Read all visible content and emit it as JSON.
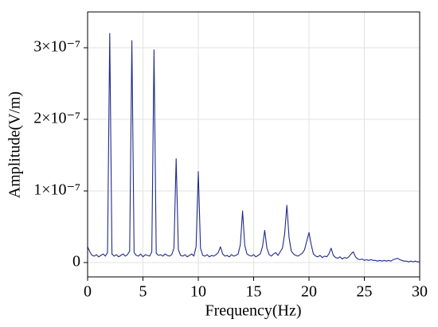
{
  "chart_data": {
    "type": "line",
    "xlabel": "Frequency(Hz)",
    "ylabel": "Amplitude(V/m)",
    "color": "#1f2a8a",
    "xlim": [
      0,
      30
    ],
    "xticks": [
      0,
      5,
      10,
      15,
      20,
      25,
      30
    ],
    "ylim": [
      -2e-08,
      3.5e-07
    ],
    "yticks": [
      0,
      {
        "value": 1e-07,
        "label": "1×10⁻⁷"
      },
      {
        "value": 2e-07,
        "label": "2×10⁻⁷"
      },
      {
        "value": 3e-07,
        "label": "3×10⁻⁷"
      }
    ],
    "grid": true,
    "x": [
      0,
      0.2,
      0.4,
      0.6,
      0.8,
      1,
      1.2,
      1.4,
      1.6,
      1.8,
      2,
      2.2,
      2.4,
      2.6,
      2.8,
      3,
      3.2,
      3.4,
      3.6,
      3.8,
      4,
      4.2,
      4.4,
      4.6,
      4.8,
      5,
      5.2,
      5.4,
      5.6,
      5.8,
      6,
      6.2,
      6.4,
      6.6,
      6.8,
      7,
      7.2,
      7.4,
      7.6,
      7.8,
      8,
      8.2,
      8.4,
      8.6,
      8.8,
      9,
      9.2,
      9.4,
      9.6,
      9.8,
      10,
      10.2,
      10.4,
      10.6,
      10.8,
      11,
      11.2,
      11.4,
      11.6,
      11.8,
      12,
      12.2,
      12.4,
      12.6,
      12.8,
      13,
      13.2,
      13.4,
      13.6,
      13.8,
      14,
      14.2,
      14.4,
      14.6,
      14.8,
      15,
      15.2,
      15.4,
      15.6,
      15.8,
      16,
      16.2,
      16.4,
      16.6,
      16.8,
      17,
      17.2,
      17.4,
      17.6,
      17.8,
      18,
      18.2,
      18.4,
      18.6,
      18.8,
      19,
      19.2,
      19.4,
      19.6,
      19.8,
      20,
      20.2,
      20.4,
      20.6,
      20.8,
      21,
      21.2,
      21.4,
      21.6,
      21.8,
      22,
      22.2,
      22.4,
      22.6,
      22.8,
      23,
      23.2,
      23.4,
      23.6,
      23.8,
      24,
      24.2,
      24.4,
      24.6,
      24.8,
      25,
      25.2,
      25.4,
      25.6,
      25.8,
      26,
      26.2,
      26.4,
      26.6,
      26.8,
      27,
      27.2,
      27.4,
      27.6,
      27.8,
      28,
      28.2,
      28.4,
      28.6,
      28.8,
      29,
      29.2,
      29.4,
      29.6,
      29.8,
      30
    ],
    "values": [
      2.2e-08,
      1.5e-08,
      1e-08,
      9e-09,
      1.1e-08,
      8e-09,
      1e-08,
      1.2e-08,
      9e-09,
      1.4e-08,
      3.2e-07,
      1.2e-08,
      9e-09,
      1.1e-08,
      8e-09,
      1e-08,
      1.2e-08,
      9e-09,
      1.1e-08,
      1.6e-08,
      3.1e-07,
      1.4e-08,
      1e-08,
      9e-09,
      1.2e-08,
      8e-09,
      1.1e-08,
      1e-08,
      9e-09,
      1.5e-08,
      2.97e-07,
      1.3e-08,
      1e-08,
      1.1e-08,
      9e-09,
      1.2e-08,
      1e-08,
      9e-09,
      1.1e-08,
      2e-08,
      1.45e-07,
      1.8e-08,
      1e-08,
      9e-09,
      1.1e-08,
      8e-09,
      1e-08,
      1.2e-08,
      9e-09,
      2.2e-08,
      1.27e-07,
      2e-08,
      1e-08,
      9e-09,
      1.1e-08,
      8e-09,
      1e-08,
      9e-09,
      1.1e-08,
      1.4e-08,
      2.2e-08,
      1.2e-08,
      9e-09,
      1e-08,
      8e-09,
      1.1e-08,
      9e-09,
      1e-08,
      1.2e-08,
      2.5e-08,
      7.2e-08,
      2.4e-08,
      1.2e-08,
      1e-08,
      9e-09,
      1.1e-08,
      8e-09,
      1e-08,
      1.2e-08,
      2.2e-08,
      4.5e-08,
      2e-08,
      1.1e-08,
      9e-09,
      1.2e-08,
      1.4e-08,
      1e-08,
      1.5e-08,
      2e-08,
      4e-08,
      8e-08,
      3.5e-08,
      1.6e-08,
      1.2e-08,
      1e-08,
      9e-09,
      1.1e-08,
      1.3e-08,
      1.8e-08,
      3e-08,
      4.2e-08,
      2.5e-08,
      1.2e-08,
      9e-09,
      8e-09,
      1e-08,
      7e-09,
      9e-09,
      8e-09,
      1.2e-08,
      2e-08,
      1e-08,
      7e-09,
      6e-09,
      8e-09,
      5e-09,
      7e-09,
      6e-09,
      8e-09,
      1.2e-08,
      1.5e-08,
      8e-09,
      5e-09,
      4e-09,
      5e-09,
      3e-09,
      4e-09,
      3e-09,
      4e-09,
      3e-09,
      3e-09,
      2e-09,
      3e-09,
      2e-09,
      3e-09,
      2e-09,
      3e-09,
      2e-09,
      4e-09,
      5e-09,
      6e-09,
      4e-09,
      3e-09,
      2e-09,
      2e-09,
      1e-09,
      2e-09,
      1e-09,
      2e-09,
      1e-09,
      1e-09
    ]
  }
}
